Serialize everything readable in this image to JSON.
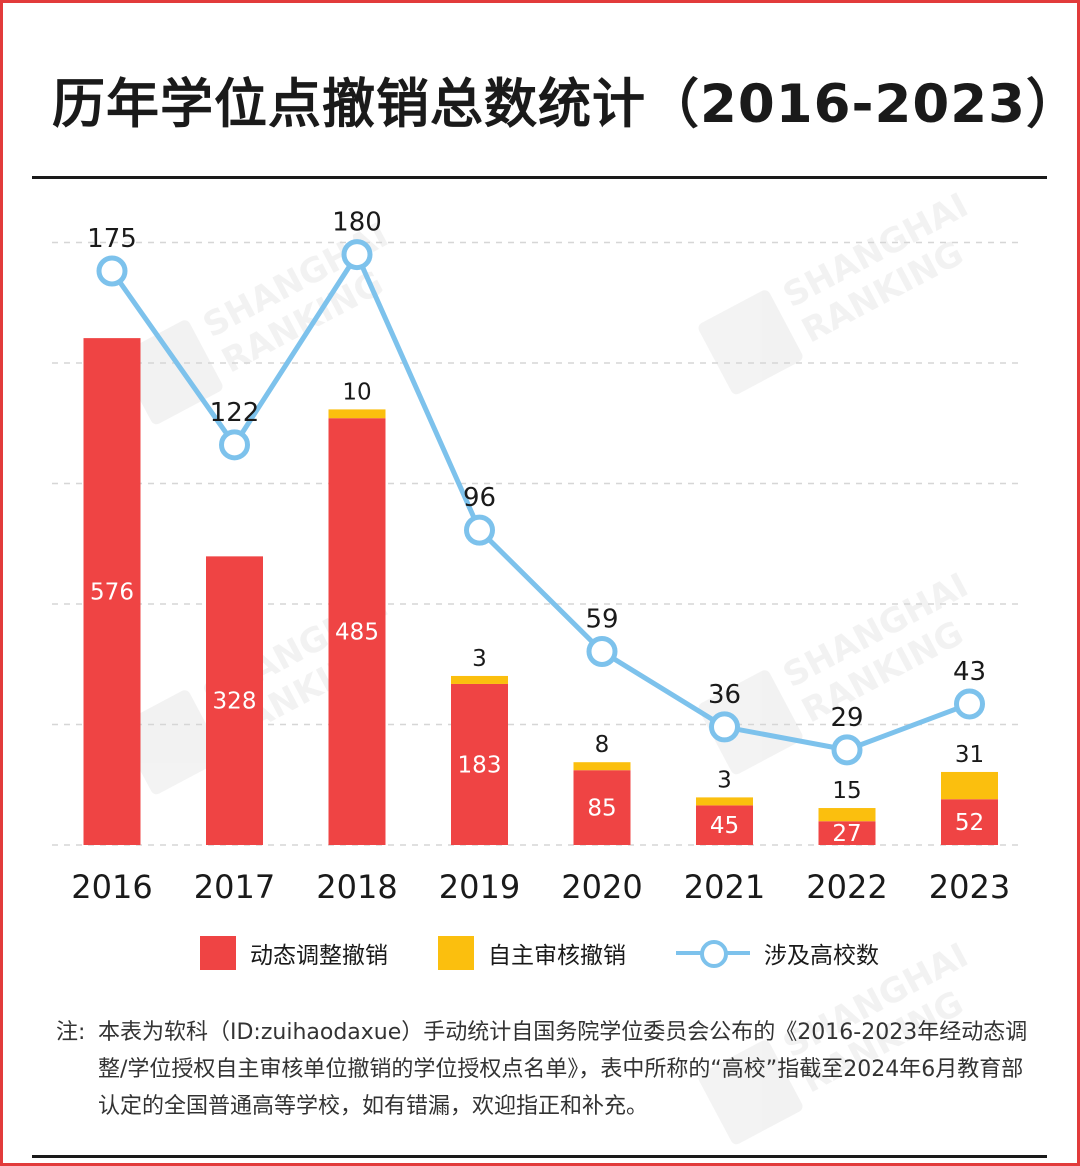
{
  "title": "历年学位点撤销总数统计（2016-2023）",
  "watermark": {
    "line1": "SHANGHAI",
    "line2": "RANKING"
  },
  "legend": {
    "dynamic_label": "动态调整撤销",
    "self_label": "自主审核撤销",
    "univ_label": "涉及高校数"
  },
  "note": {
    "label": "注:",
    "text": "本表为软科（ID:zuihaodaxue）手动统计自国务院学位委员会公布的《2016-2023年经动态调整/学位授权自主审核单位撤销的学位授权点名单》，表中所称的“高校”指截至2024年6月教育部认定的全国普通高等学校，如有错漏，欢迎指正和补充。"
  },
  "colors": {
    "frame": "#e23b3b",
    "dynamic": "#ef4444",
    "self": "#fbbf0e",
    "line": "#7dc2ec"
  },
  "chart_data": {
    "type": "bar",
    "title": "历年学位点撤销总数统计（2016-2023）",
    "categories": [
      "2016",
      "2017",
      "2018",
      "2019",
      "2020",
      "2021",
      "2022",
      "2023"
    ],
    "series": [
      {
        "name": "动态调整撤销",
        "type": "stacked-bar",
        "values": [
          576,
          328,
          485,
          183,
          85,
          45,
          27,
          52
        ]
      },
      {
        "name": "自主审核撤销",
        "type": "stacked-bar",
        "values": [
          null,
          null,
          10,
          3,
          8,
          3,
          15,
          31
        ]
      },
      {
        "name": "涉及高校数",
        "type": "line",
        "values": [
          175,
          122,
          180,
          96,
          59,
          36,
          29,
          43
        ]
      }
    ],
    "ylim_bars": [
      0,
      600
    ],
    "ylim_line": [
      0,
      200
    ],
    "grid": true,
    "legend_position": "bottom"
  }
}
